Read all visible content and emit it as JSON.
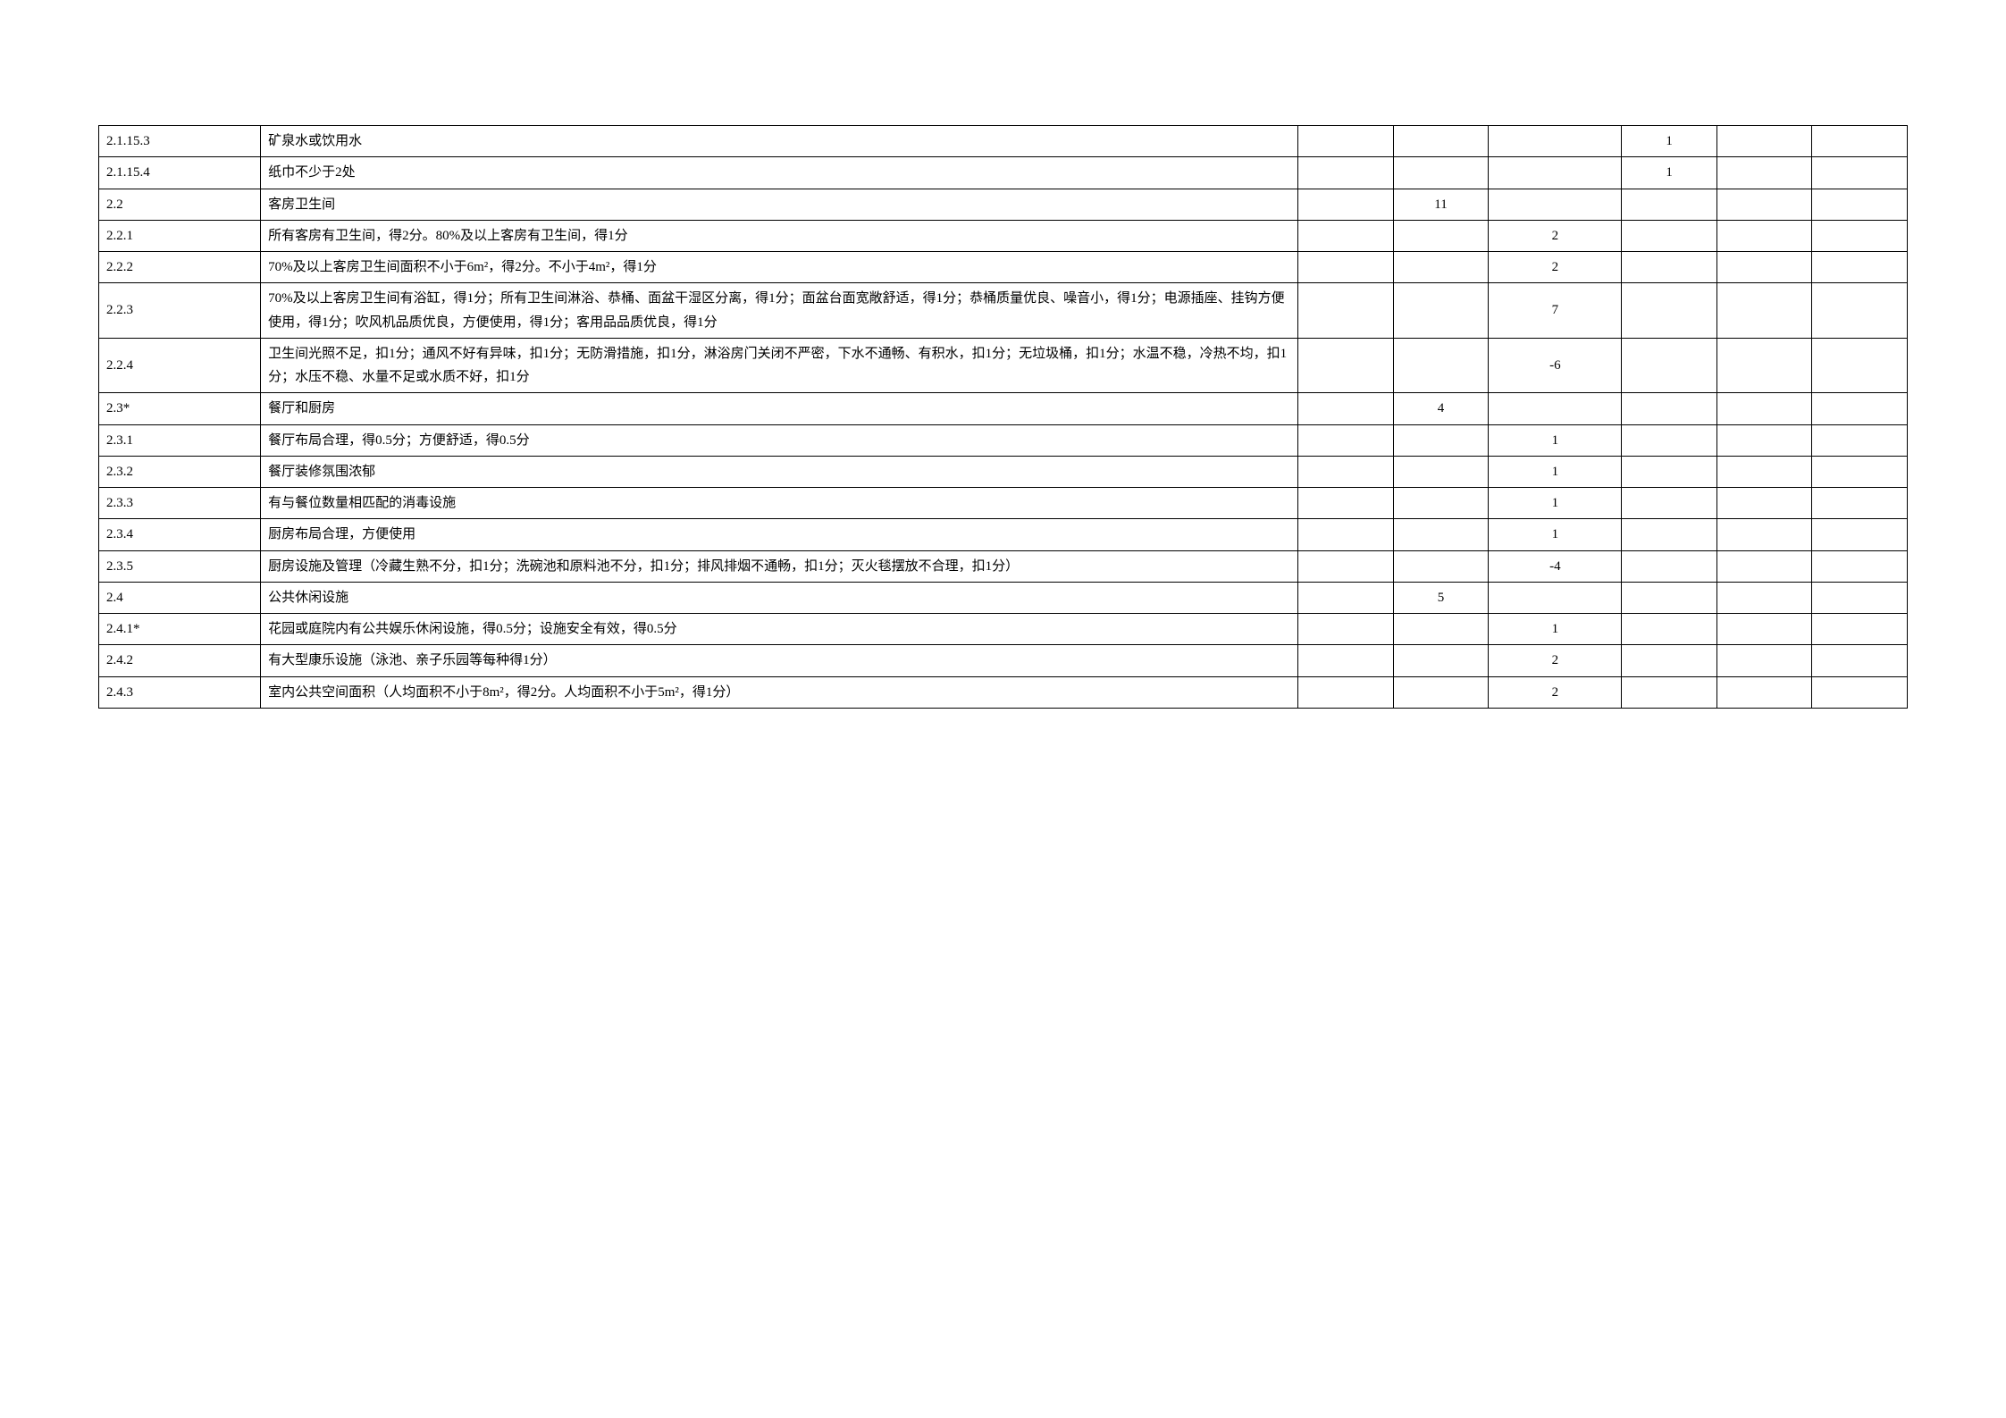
{
  "table": {
    "border_color": "#000000",
    "background_color": "#ffffff",
    "text_color": "#000000",
    "font_size": 15,
    "columns": [
      {
        "key": "id",
        "width": "8.5%",
        "align": "left"
      },
      {
        "key": "desc",
        "width": "54.5%",
        "align": "left"
      },
      {
        "key": "c1",
        "width": "5%",
        "align": "center"
      },
      {
        "key": "c2",
        "width": "5%",
        "align": "center"
      },
      {
        "key": "c3",
        "width": "7%",
        "align": "center"
      },
      {
        "key": "c4",
        "width": "5%",
        "align": "center"
      },
      {
        "key": "c5",
        "width": "5%",
        "align": "center"
      },
      {
        "key": "c6",
        "width": "5%",
        "align": "center"
      }
    ],
    "rows": [
      {
        "id": "2.1.15.3",
        "desc": "矿泉水或饮用水",
        "c1": "",
        "c2": "",
        "c3": "",
        "c4": "1",
        "c5": "",
        "c6": ""
      },
      {
        "id": "2.1.15.4",
        "desc": "纸巾不少于2处",
        "c1": "",
        "c2": "",
        "c3": "",
        "c4": "1",
        "c5": "",
        "c6": ""
      },
      {
        "id": "2.2",
        "desc": "客房卫生间",
        "c1": "",
        "c2": "11",
        "c3": "",
        "c4": "",
        "c5": "",
        "c6": ""
      },
      {
        "id": "2.2.1",
        "desc": "所有客房有卫生间，得2分。80%及以上客房有卫生间，得1分",
        "c1": "",
        "c2": "",
        "c3": "2",
        "c4": "",
        "c5": "",
        "c6": ""
      },
      {
        "id": "2.2.2",
        "desc": "70%及以上客房卫生间面积不小于6m²，得2分。不小于4m²，得1分",
        "c1": "",
        "c2": "",
        "c3": "2",
        "c4": "",
        "c5": "",
        "c6": ""
      },
      {
        "id": "2.2.3",
        "desc": "70%及以上客房卫生间有浴缸，得1分；所有卫生间淋浴、恭桶、面盆干湿区分离，得1分；面盆台面宽敞舒适，得1分；恭桶质量优良、噪音小，得1分；电源插座、挂钩方便使用，得1分；吹风机品质优良，方便使用，得1分；客用品品质优良，得1分",
        "c1": "",
        "c2": "",
        "c3": "7",
        "c4": "",
        "c5": "",
        "c6": ""
      },
      {
        "id": "2.2.4",
        "desc": "卫生间光照不足，扣1分；通风不好有异味，扣1分；无防滑措施，扣1分，淋浴房门关闭不严密，下水不通畅、有积水，扣1分；无垃圾桶，扣1分；水温不稳，冷热不均，扣1分；水压不稳、水量不足或水质不好，扣1分",
        "c1": "",
        "c2": "",
        "c3": "-6",
        "c4": "",
        "c5": "",
        "c6": ""
      },
      {
        "id": "2.3*",
        "desc": "餐厅和厨房",
        "c1": "",
        "c2": "4",
        "c3": "",
        "c4": "",
        "c5": "",
        "c6": ""
      },
      {
        "id": "2.3.1",
        "desc": "餐厅布局合理，得0.5分；方便舒适，得0.5分",
        "c1": "",
        "c2": "",
        "c3": "1",
        "c4": "",
        "c5": "",
        "c6": ""
      },
      {
        "id": "2.3.2",
        "desc": "餐厅装修氛围浓郁",
        "c1": "",
        "c2": "",
        "c3": "1",
        "c4": "",
        "c5": "",
        "c6": ""
      },
      {
        "id": "2.3.3",
        "desc": "有与餐位数量相匹配的消毒设施",
        "c1": "",
        "c2": "",
        "c3": "1",
        "c4": "",
        "c5": "",
        "c6": ""
      },
      {
        "id": "2.3.4",
        "desc": "厨房布局合理，方便使用",
        "c1": "",
        "c2": "",
        "c3": "1",
        "c4": "",
        "c5": "",
        "c6": ""
      },
      {
        "id": "2.3.5",
        "desc": "厨房设施及管理（冷藏生熟不分，扣1分；洗碗池和原料池不分，扣1分；排风排烟不通畅，扣1分；灭火毯摆放不合理，扣1分）",
        "c1": "",
        "c2": "",
        "c3": "-4",
        "c4": "",
        "c5": "",
        "c6": ""
      },
      {
        "id": "2.4",
        "desc": "公共休闲设施",
        "c1": "",
        "c2": "5",
        "c3": "",
        "c4": "",
        "c5": "",
        "c6": ""
      },
      {
        "id": "2.4.1*",
        "desc": "花园或庭院内有公共娱乐休闲设施，得0.5分；设施安全有效，得0.5分",
        "c1": "",
        "c2": "",
        "c3": "1",
        "c4": "",
        "c5": "",
        "c6": ""
      },
      {
        "id": "2.4.2",
        "desc": "有大型康乐设施（泳池、亲子乐园等每种得1分）",
        "c1": "",
        "c2": "",
        "c3": "2",
        "c4": "",
        "c5": "",
        "c6": ""
      },
      {
        "id": "2.4.3",
        "desc": "室内公共空间面积（人均面积不小于8m²，得2分。人均面积不小于5m²，得1分）",
        "c1": "",
        "c2": "",
        "c3": "2",
        "c4": "",
        "c5": "",
        "c6": ""
      }
    ]
  }
}
